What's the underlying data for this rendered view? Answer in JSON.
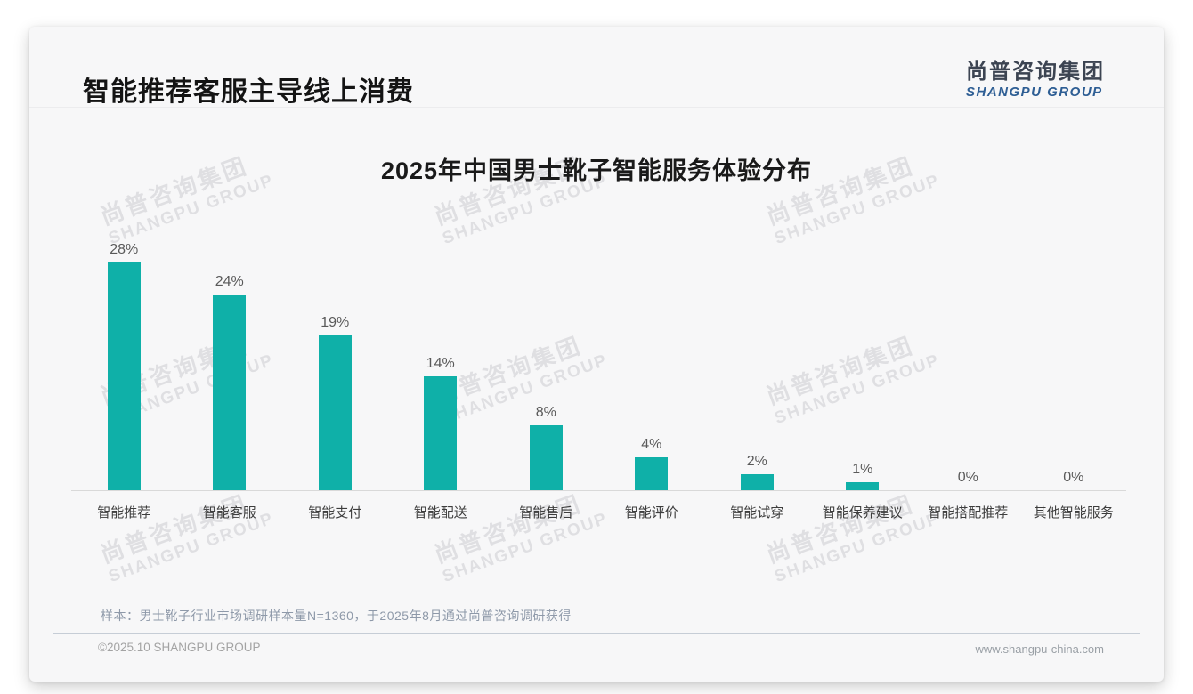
{
  "page": {
    "header": {
      "title": "智能推荐客服主导线上消费"
    },
    "logo": {
      "cn": "尚普咨询集团",
      "en": "SHANGPU GROUP"
    },
    "watermark": {
      "cn": "尚普咨询集团",
      "en": "SHANGPU GROUP"
    },
    "note": "样本：男士靴子行业市场调研样本量N=1360，于2025年8月通过尚普咨询调研获得",
    "footer": {
      "left": "©2025.10 SHANGPU GROUP",
      "right": "www.shangpu-china.com"
    }
  },
  "colors": {
    "accent_teal": "#0FB0A8",
    "logo_blue": "#2E5E94",
    "axis_line": "#D9D9D9"
  },
  "chart_data": {
    "type": "bar",
    "title": "2025年中国男士靴子智能服务体验分布",
    "categories": [
      "智能推荐",
      "智能客服",
      "智能支付",
      "智能配送",
      "智能售后",
      "智能评价",
      "智能试穿",
      "智能保养建议",
      "智能搭配推荐",
      "其他智能服务"
    ],
    "values": [
      28,
      24,
      19,
      14,
      8,
      4,
      2,
      1,
      0,
      0
    ],
    "value_labels": [
      "28%",
      "24%",
      "19%",
      "14%",
      "8%",
      "4%",
      "2%",
      "1%",
      "0%",
      "0%"
    ],
    "unit": "%",
    "xlabel": "",
    "ylabel": "",
    "ylim": [
      0,
      30
    ],
    "grid": false,
    "legend": false,
    "bar_color": "#0FB0A8",
    "axis_line_color": "#D9D9D9",
    "value_labels_position": "above-bar"
  }
}
